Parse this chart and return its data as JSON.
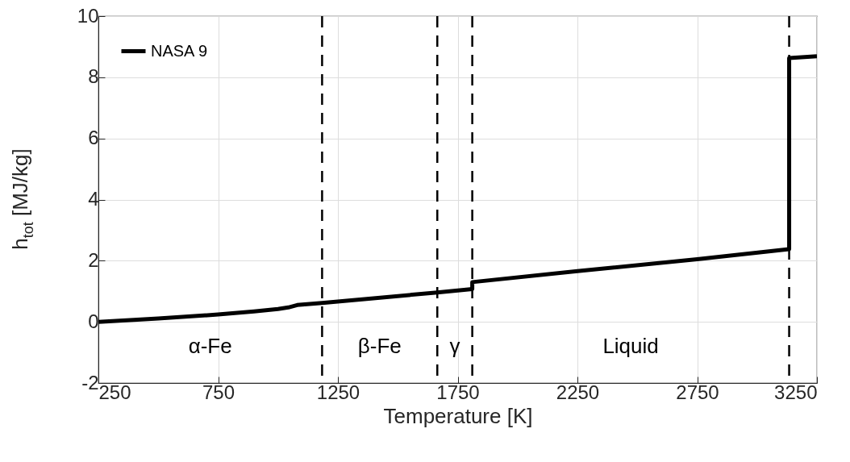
{
  "chart_data": {
    "type": "line",
    "xlabel": "Temperature [K]",
    "ylabel": "h$_{tot}$ [MJ/kg]",
    "x": [
      250,
      500,
      750,
      900,
      1000,
      1043,
      1080,
      1184,
      1665,
      1811,
      1811,
      2250,
      2750,
      3134,
      3134,
      3250
    ],
    "series": [
      {
        "name": "NASA 9",
        "color": "#000000",
        "values": [
          0,
          0.11,
          0.24,
          0.34,
          0.42,
          0.47,
          0.55,
          0.62,
          0.96,
          1.07,
          1.3,
          1.66,
          2.05,
          2.38,
          8.63,
          8.69
        ]
      }
    ],
    "xlim": [
      250,
      3250
    ],
    "xticks": [
      250,
      750,
      1250,
      1750,
      2250,
      2750,
      3250
    ],
    "ylim": [
      -2,
      10
    ],
    "yticks": [
      -2,
      0,
      2,
      4,
      6,
      8,
      10
    ],
    "ref_lines": [
      {
        "axis": "x",
        "value": 1184,
        "color": "#000000",
        "line_style": "dashed"
      },
      {
        "axis": "x",
        "value": 1665,
        "color": "#000000",
        "line_style": "dashed"
      },
      {
        "axis": "x",
        "value": 1811,
        "color": "#000000",
        "line_style": "dashed"
      },
      {
        "axis": "x",
        "value": 3134,
        "color": "#000000",
        "line_style": "dashed"
      }
    ],
    "annotations": [
      "α-Fe",
      "β-Fe",
      "γ",
      "Liquid"
    ],
    "grid": true,
    "legend": "top left",
    "line_style": "solid"
  }
}
